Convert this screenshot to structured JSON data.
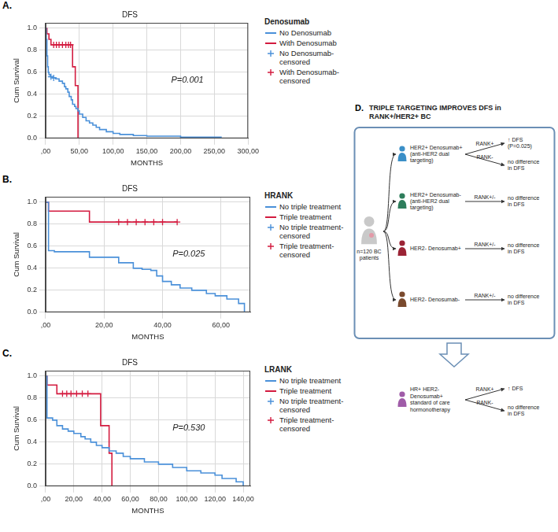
{
  "chart_data": [
    {
      "type": "line",
      "panel": "A.",
      "title": "DFS",
      "x_label": "MONTHS",
      "y_label": "Cum Survival",
      "annotation": "P=0.001",
      "legend_title": "Denosumab",
      "legend": "right",
      "grid": true,
      "xlim": [
        0,
        300
      ],
      "xticks": [
        {
          "value": 0,
          "label": ",00"
        },
        {
          "value": 50,
          "label": "50,00"
        },
        {
          "value": 100,
          "label": "100,00"
        },
        {
          "value": 150,
          "label": "150,00"
        },
        {
          "value": 200,
          "label": "200,00"
        },
        {
          "value": 250,
          "label": "250,00"
        },
        {
          "value": 300,
          "label": "300,00"
        }
      ],
      "ylim": [
        0,
        1.05
      ],
      "yticks": [
        {
          "value": 0,
          "label": "0.0"
        },
        0.2,
        0.4,
        0.6,
        0.8,
        {
          "value": 1,
          "label": "1.0"
        }
      ],
      "series": [
        {
          "name": "No Denosumab",
          "type": "line",
          "line_style": "step",
          "color": "#4a90d9",
          "x": [
            0,
            1,
            2,
            3,
            4,
            5,
            7,
            10,
            15,
            20,
            25,
            28,
            30,
            33,
            35,
            38,
            40,
            43,
            45,
            48,
            50,
            55,
            60,
            65,
            70,
            75,
            80,
            90,
            100,
            110,
            130,
            150,
            200,
            260
          ],
          "values": [
            1,
            0.9,
            0.75,
            0.65,
            0.6,
            0.58,
            0.56,
            0.55,
            0.54,
            0.52,
            0.5,
            0.47,
            0.45,
            0.42,
            0.38,
            0.35,
            0.31,
            0.29,
            0.27,
            0.25,
            0.22,
            0.19,
            0.16,
            0.14,
            0.12,
            0.1,
            0.08,
            0.06,
            0.045,
            0.035,
            0.025,
            0.02,
            0.01,
            0
          ]
        },
        {
          "name": "With Denosumab",
          "type": "line",
          "line_style": "step",
          "color": "#d31b3f",
          "x": [
            0,
            2,
            5,
            8,
            40,
            44,
            48
          ],
          "values": [
            1,
            0.95,
            0.9,
            0.85,
            0.65,
            0.48,
            0
          ]
        },
        {
          "name": "No Denosumab-censored",
          "type": "scatter",
          "marker": "cross",
          "color": "#4a90d9",
          "x": [
            8,
            12
          ],
          "values": [
            0.56,
            0.55
          ]
        },
        {
          "name": "With Denosumab-censored",
          "type": "scatter",
          "marker": "cross",
          "color": "#d31b3f",
          "x": [
            12,
            16,
            20,
            25,
            30,
            34,
            37
          ],
          "values": [
            0.85,
            0.85,
            0.85,
            0.85,
            0.85,
            0.85,
            0.85
          ]
        }
      ]
    },
    {
      "type": "line",
      "panel": "B.",
      "title": "DFS",
      "x_label": "MONTHS",
      "y_label": "Cum Survival",
      "annotation": "P=0.025",
      "legend_title": "HRANK",
      "legend": "right",
      "grid": true,
      "xlim": [
        0,
        70
      ],
      "xticks": [
        {
          "value": 0,
          "label": ",00"
        },
        {
          "value": 20,
          "label": "20,00"
        },
        {
          "value": 40,
          "label": "40,00"
        },
        {
          "value": 60,
          "label": "60,00"
        }
      ],
      "ylim": [
        0,
        1.05
      ],
      "yticks": [
        {
          "value": 0,
          "label": "0.0"
        },
        0.2,
        0.4,
        0.6,
        0.8,
        {
          "value": 1,
          "label": "1.0"
        }
      ],
      "series": [
        {
          "name": "No triple treatment",
          "type": "line",
          "line_style": "step",
          "color": "#4a90d9",
          "x": [
            0,
            1,
            3,
            15,
            25,
            30,
            33,
            36,
            38,
            40,
            43,
            46,
            50,
            55,
            58,
            62,
            66,
            68
          ],
          "values": [
            1,
            0.56,
            0.55,
            0.5,
            0.45,
            0.4,
            0.39,
            0.38,
            0.33,
            0.28,
            0.25,
            0.22,
            0.2,
            0.17,
            0.15,
            0.12,
            0.08,
            0
          ]
        },
        {
          "name": "Triple treatment",
          "type": "line",
          "line_style": "step",
          "color": "#d31b3f",
          "x": [
            0,
            1,
            15,
            45
          ],
          "values": [
            1,
            0.92,
            0.82,
            0.82
          ]
        },
        {
          "name": "No triple treatment-censored",
          "type": "scatter",
          "marker": "cross",
          "color": "#4a90d9",
          "x": [],
          "values": []
        },
        {
          "name": "Triple treatment-censored",
          "type": "scatter",
          "marker": "cross",
          "color": "#d31b3f",
          "x": [
            25,
            28,
            31,
            34,
            37,
            40,
            45
          ],
          "values": [
            0.82,
            0.82,
            0.82,
            0.82,
            0.82,
            0.82,
            0.82
          ]
        }
      ]
    },
    {
      "type": "line",
      "panel": "C.",
      "title": "DFS",
      "x_label": "MONTHS",
      "y_label": "Cum Survival",
      "annotation": "P=0.530",
      "legend_title": "LRANK",
      "legend": "right",
      "grid": true,
      "xlim": [
        0,
        145
      ],
      "xticks": [
        {
          "value": 0,
          "label": ",00"
        },
        {
          "value": 20,
          "label": "20,00"
        },
        {
          "value": 40,
          "label": "40,00"
        },
        {
          "value": 60,
          "label": "60,00"
        },
        {
          "value": 80,
          "label": "80,00"
        },
        {
          "value": 100,
          "label": "100,00"
        },
        {
          "value": 120,
          "label": "120,00"
        },
        {
          "value": 140,
          "label": "140,00"
        }
      ],
      "ylim": [
        0,
        1.05
      ],
      "yticks": [
        {
          "value": 0,
          "label": "0.0"
        },
        0.2,
        0.4,
        0.6,
        0.8,
        {
          "value": 1,
          "label": "1.0"
        }
      ],
      "series": [
        {
          "name": "No triple treatment",
          "type": "line",
          "line_style": "step",
          "color": "#4a90d9",
          "x": [
            0,
            1,
            5,
            8,
            12,
            16,
            20,
            25,
            28,
            32,
            36,
            40,
            45,
            50,
            55,
            60,
            70,
            80,
            90,
            100,
            110,
            120,
            125,
            135,
            140
          ],
          "values": [
            1,
            0.62,
            0.6,
            0.55,
            0.52,
            0.5,
            0.48,
            0.45,
            0.43,
            0.4,
            0.37,
            0.35,
            0.32,
            0.3,
            0.27,
            0.25,
            0.22,
            0.2,
            0.17,
            0.14,
            0.12,
            0.1,
            0.07,
            0.04,
            0
          ]
        },
        {
          "name": "Triple treatment",
          "type": "line",
          "line_style": "step",
          "color": "#d31b3f",
          "x": [
            0,
            1,
            8,
            39,
            45,
            47
          ],
          "values": [
            1,
            0.92,
            0.84,
            0.55,
            0.3,
            0
          ]
        },
        {
          "name": "No triple treatment-censored",
          "type": "scatter",
          "marker": "cross",
          "color": "#4a90d9",
          "x": [],
          "values": []
        },
        {
          "name": "Triple treatment-censored",
          "type": "scatter",
          "marker": "cross",
          "color": "#d31b3f",
          "x": [
            12,
            15,
            18,
            22,
            26,
            30
          ],
          "values": [
            0.84,
            0.84,
            0.84,
            0.84,
            0.84,
            0.84
          ]
        }
      ]
    }
  ],
  "diagram": {
    "panel": "D.",
    "title": "TRIPLE TARGETING IMPROVES DFS in RANK+/HER2+ BC",
    "cohort": "n=120 BC patients",
    "groups": [
      {
        "label": "HER2+ Denosumab+ (anti-HER2 dual targeting)",
        "color": "#3a8fc7",
        "outcomes": [
          {
            "rank": "RANK+",
            "result": "↑ DFS (P=0.025)"
          },
          {
            "rank": "RANK-",
            "result": "no difference in DFS"
          }
        ]
      },
      {
        "label": "HER2+ Denosumab- (anti-HER2 dual targeting)",
        "color": "#2e7d5b",
        "outcomes": [
          {
            "rank": "RANK+/-",
            "result": "no difference in DFS"
          }
        ]
      },
      {
        "label": "HER2- Denosumab+",
        "color": "#9b2335",
        "outcomes": [
          {
            "rank": "RANK+/-",
            "result": "no difference in DFS"
          }
        ]
      },
      {
        "label": "HER2- Denosumab-",
        "color": "#7a4a2e",
        "outcomes": [
          {
            "rank": "RANK+/-",
            "result": "no difference in DFS"
          }
        ]
      }
    ],
    "conclusion": {
      "label": "HR+ HER2- Denosumab+ standard of care hormonotherapy",
      "color": "#a05ca8",
      "outcomes": [
        {
          "rank": "RANK+",
          "result": "↑ DFS"
        },
        {
          "rank": "RANK-",
          "result": "no difference in DFS"
        }
      ]
    }
  }
}
